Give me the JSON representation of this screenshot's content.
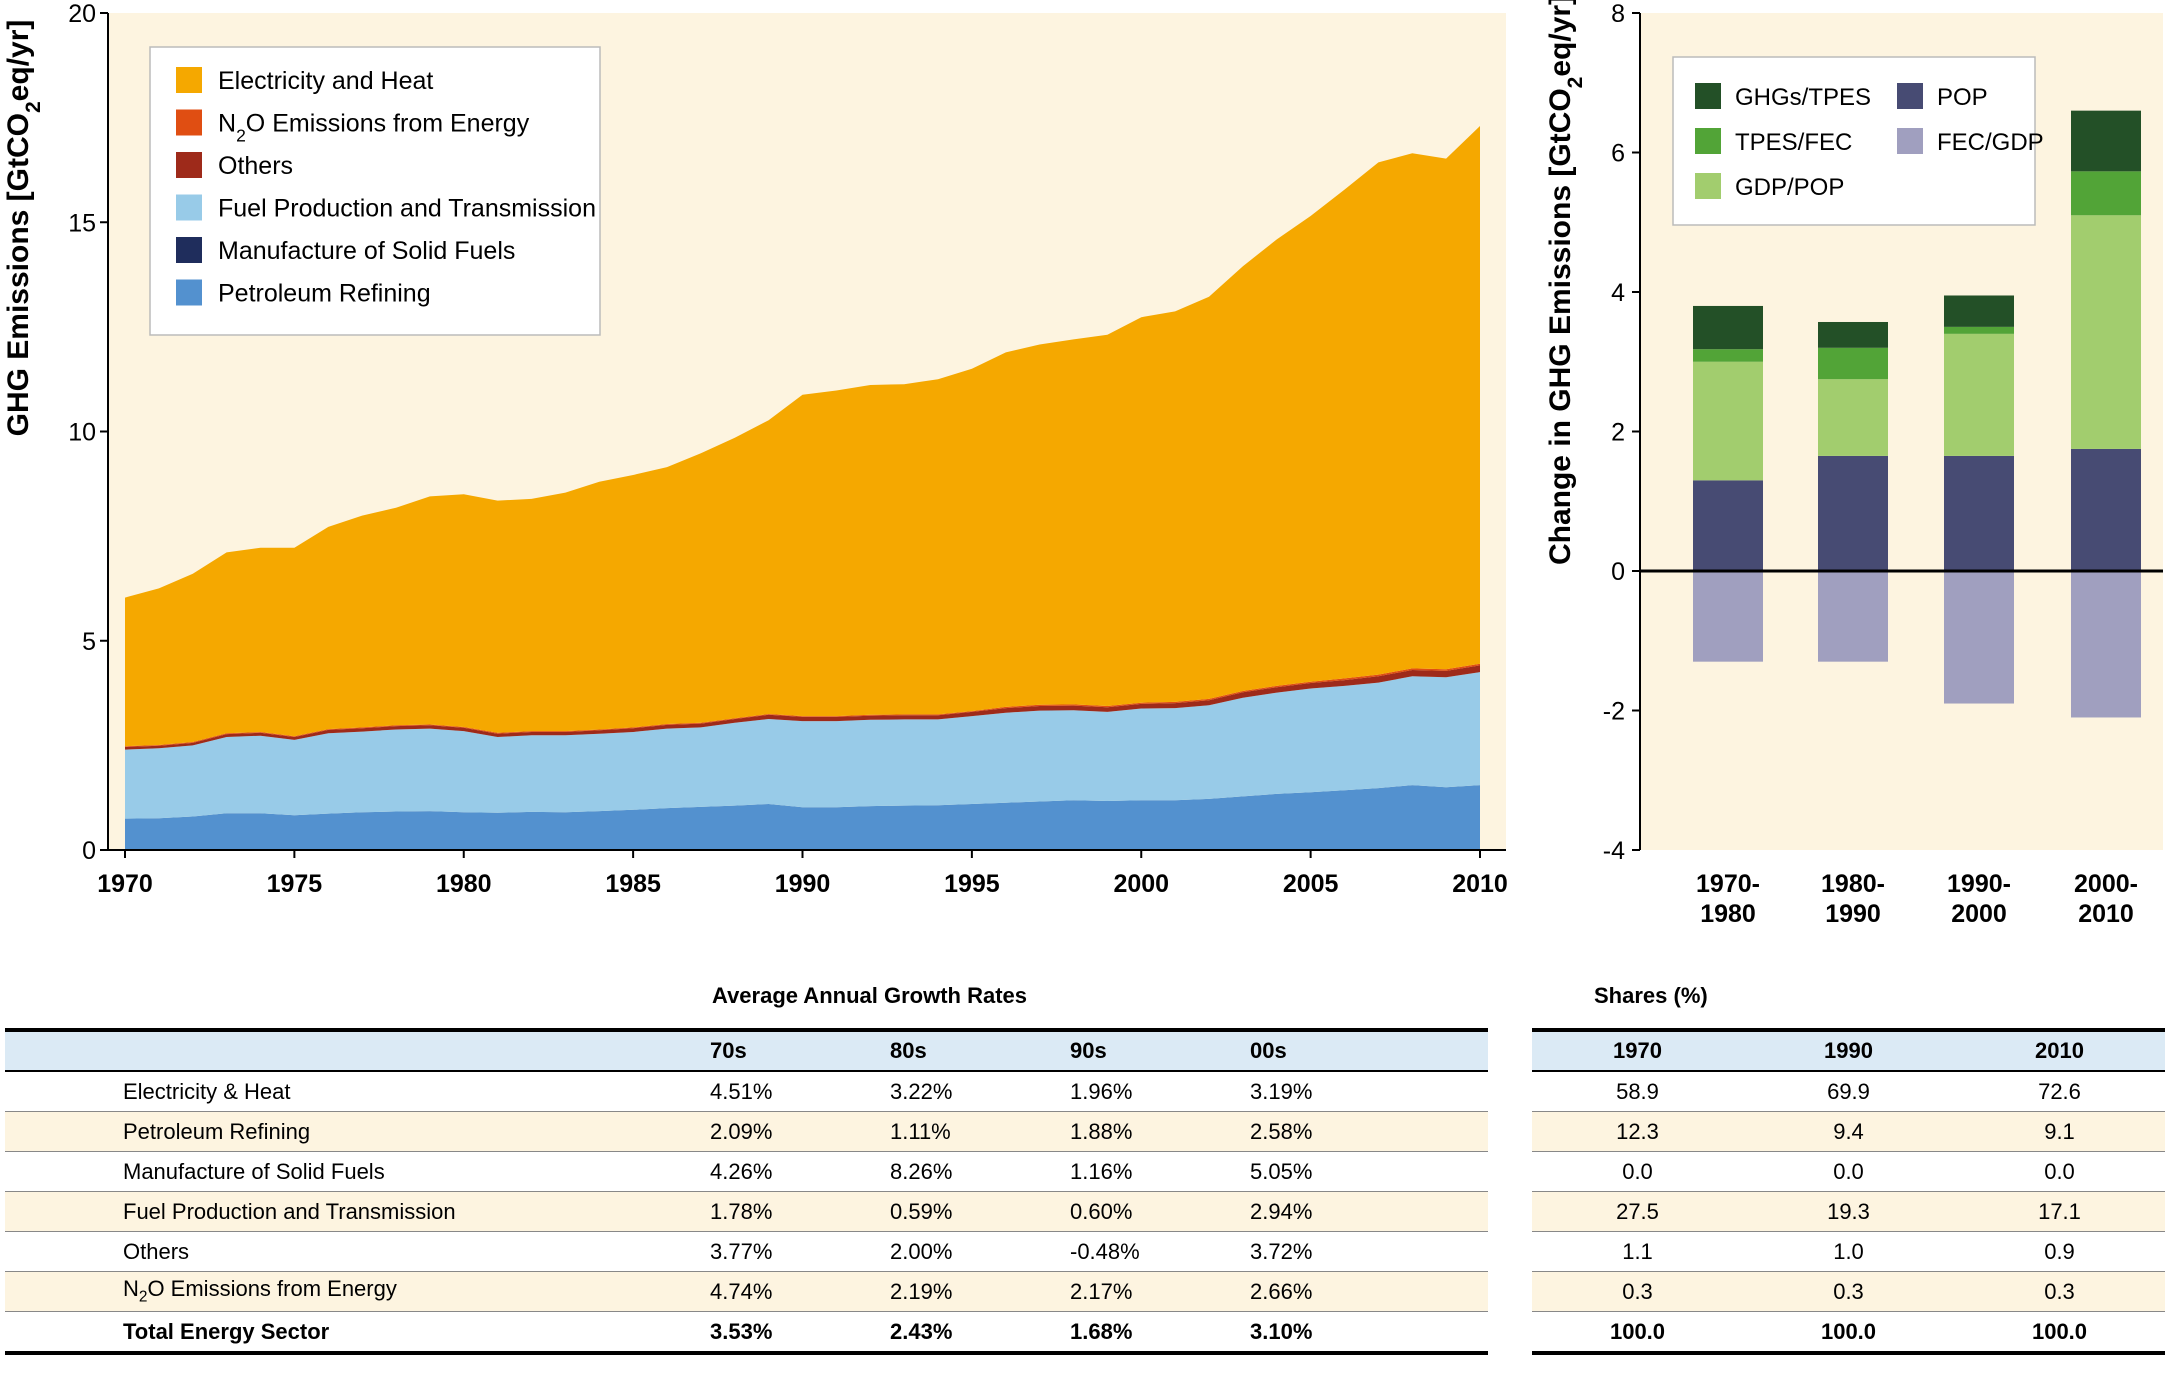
{
  "chart_data": [
    {
      "type": "area",
      "ylabel": "GHG Emissions [GtCO₂eq/yr]",
      "ylim": [
        0,
        20
      ],
      "y_ticks": [
        0,
        5,
        10,
        15,
        20
      ],
      "x_ticks": [
        1970,
        1975,
        1980,
        1985,
        1990,
        1995,
        2000,
        2005,
        2010
      ],
      "xlim": [
        1970,
        2010
      ],
      "background": "#fdf4e0",
      "legend_position": "top-left",
      "x": [
        1970,
        1971,
        1972,
        1973,
        1974,
        1975,
        1976,
        1977,
        1978,
        1979,
        1980,
        1981,
        1982,
        1983,
        1984,
        1985,
        1986,
        1987,
        1988,
        1989,
        1990,
        1991,
        1992,
        1993,
        1994,
        1995,
        1996,
        1997,
        1998,
        1999,
        2000,
        2001,
        2002,
        2003,
        2004,
        2005,
        2006,
        2007,
        2008,
        2009,
        2010
      ],
      "series": [
        {
          "name": "Petroleum Refining",
          "color": "#5391cf",
          "values": [
            0.75,
            0.76,
            0.8,
            0.88,
            0.88,
            0.83,
            0.87,
            0.9,
            0.92,
            0.93,
            0.9,
            0.89,
            0.91,
            0.9,
            0.93,
            0.96,
            1.0,
            1.03,
            1.06,
            1.1,
            1.02,
            1.02,
            1.05,
            1.06,
            1.07,
            1.1,
            1.13,
            1.16,
            1.19,
            1.17,
            1.19,
            1.19,
            1.22,
            1.28,
            1.34,
            1.38,
            1.43,
            1.48,
            1.55,
            1.5,
            1.55
          ]
        },
        {
          "name": "Manufacture of Solid Fuels",
          "color": "#1f2d5c",
          "values": [
            0,
            0,
            0,
            0,
            0,
            0,
            0,
            0,
            0,
            0,
            0,
            0,
            0,
            0,
            0,
            0,
            0,
            0,
            0,
            0,
            0,
            0,
            0,
            0,
            0,
            0,
            0,
            0,
            0,
            0,
            0,
            0,
            0,
            0,
            0,
            0,
            0,
            0,
            0,
            0,
            0
          ]
        },
        {
          "name": "Fuel Production and Transmission",
          "color": "#98cbe8",
          "values": [
            1.65,
            1.67,
            1.7,
            1.82,
            1.85,
            1.8,
            1.92,
            1.93,
            1.96,
            1.97,
            1.94,
            1.81,
            1.83,
            1.84,
            1.85,
            1.86,
            1.9,
            1.9,
            1.98,
            2.03,
            2.06,
            2.06,
            2.06,
            2.06,
            2.05,
            2.1,
            2.15,
            2.17,
            2.15,
            2.13,
            2.19,
            2.2,
            2.24,
            2.36,
            2.42,
            2.48,
            2.49,
            2.52,
            2.6,
            2.63,
            2.7
          ]
        },
        {
          "name": "Others",
          "color": "#9e2a1a",
          "values": [
            0.06,
            0.06,
            0.06,
            0.07,
            0.07,
            0.07,
            0.08,
            0.08,
            0.08,
            0.08,
            0.08,
            0.08,
            0.08,
            0.08,
            0.08,
            0.09,
            0.09,
            0.09,
            0.09,
            0.1,
            0.1,
            0.1,
            0.1,
            0.1,
            0.1,
            0.1,
            0.11,
            0.11,
            0.11,
            0.11,
            0.11,
            0.12,
            0.12,
            0.13,
            0.13,
            0.13,
            0.14,
            0.15,
            0.15,
            0.15,
            0.16
          ]
        },
        {
          "name": "N₂O Emissions from Energy",
          "color": "#e04e12",
          "values": [
            0.02,
            0.02,
            0.02,
            0.02,
            0.02,
            0.02,
            0.02,
            0.02,
            0.02,
            0.02,
            0.02,
            0.02,
            0.02,
            0.02,
            0.02,
            0.02,
            0.02,
            0.02,
            0.02,
            0.02,
            0.02,
            0.02,
            0.02,
            0.02,
            0.02,
            0.02,
            0.03,
            0.03,
            0.03,
            0.03,
            0.03,
            0.03,
            0.03,
            0.03,
            0.03,
            0.03,
            0.04,
            0.04,
            0.04,
            0.04,
            0.04
          ]
        },
        {
          "name": "Electricity and Heat",
          "color": "#f5a800",
          "values": [
            3.55,
            3.74,
            4.02,
            4.32,
            4.4,
            4.5,
            4.83,
            5.06,
            5.2,
            5.45,
            5.56,
            5.55,
            5.55,
            5.7,
            5.92,
            6.03,
            6.14,
            6.44,
            6.7,
            7.02,
            7.68,
            7.78,
            7.88,
            7.89,
            8.01,
            8.18,
            8.47,
            8.61,
            8.72,
            8.87,
            9.21,
            9.33,
            9.61,
            10.15,
            10.67,
            11.13,
            11.68,
            12.24,
            12.31,
            12.2,
            12.85
          ]
        }
      ]
    },
    {
      "type": "bar",
      "stacked": true,
      "ylabel": "Change in GHG Emissions [GtCO₂eq/yr]",
      "ylim": [
        -4,
        8
      ],
      "y_ticks": [
        -4,
        -2,
        0,
        2,
        4,
        6,
        8
      ],
      "y_tick_labels": [
        "-4",
        "-2",
        "0",
        "2",
        "4",
        "6",
        "8"
      ],
      "background": "#fdf4e0",
      "legend_position": "top",
      "categories": [
        [
          "1970-",
          "1980"
        ],
        [
          "1980-",
          "1990"
        ],
        [
          "1990-",
          "2000"
        ],
        [
          "2000-",
          "2010"
        ]
      ],
      "series": [
        {
          "name": "POP",
          "color": "#474b73",
          "values": [
            1.3,
            1.65,
            1.65,
            1.75
          ]
        },
        {
          "name": "GDP/POP",
          "color": "#a2cd6e",
          "values": [
            1.7,
            1.1,
            1.75,
            3.35
          ]
        },
        {
          "name": "TPES/FEC",
          "color": "#52a437",
          "values": [
            0.18,
            0.45,
            0.1,
            0.63
          ]
        },
        {
          "name": "GHGs/TPES",
          "color": "#235027",
          "values": [
            0.62,
            0.37,
            0.45,
            0.87
          ]
        },
        {
          "name": "FEC/GDP",
          "color": "#a09fbf",
          "values": [
            -1.3,
            -1.3,
            -1.9,
            -2.1
          ]
        }
      ],
      "legend_order": [
        "GHGs/TPES",
        "POP",
        "TPES/FEC",
        "FEC/GDP",
        "GDP/POP"
      ]
    }
  ],
  "growth_table": {
    "title": "Average Annual Growth Rates",
    "headers": [
      "",
      "70s",
      "80s",
      "90s",
      "00s"
    ],
    "rows": [
      {
        "label": "Electricity & Heat",
        "values": [
          "4.51%",
          "3.22%",
          "1.96%",
          "3.19%"
        ]
      },
      {
        "label": "Petroleum Refining",
        "values": [
          "2.09%",
          "1.11%",
          "1.88%",
          "2.58%"
        ]
      },
      {
        "label": "Manufacture of Solid Fuels",
        "values": [
          "4.26%",
          "8.26%",
          "1.16%",
          "5.05%"
        ]
      },
      {
        "label": "Fuel Production and Transmission",
        "values": [
          "1.78%",
          "0.59%",
          "0.60%",
          "2.94%"
        ]
      },
      {
        "label": "Others",
        "values": [
          "3.77%",
          "2.00%",
          "-0.48%",
          "3.72%"
        ]
      },
      {
        "label": "N₂O Emissions from Energy",
        "values": [
          "4.74%",
          "2.19%",
          "2.17%",
          "2.66%"
        ]
      },
      {
        "label": "Total Energy Sector",
        "values": [
          "3.53%",
          "2.43%",
          "1.68%",
          "3.10%"
        ]
      }
    ]
  },
  "shares_table": {
    "title": "Shares (%)",
    "headers": [
      "1970",
      "1990",
      "2010"
    ],
    "rows": [
      [
        "58.9",
        "69.9",
        "72.6"
      ],
      [
        "12.3",
        "9.4",
        "9.1"
      ],
      [
        "0.0",
        "0.0",
        "0.0"
      ],
      [
        "27.5",
        "19.3",
        "17.1"
      ],
      [
        "1.1",
        "1.0",
        "0.9"
      ],
      [
        "0.3",
        "0.3",
        "0.3"
      ],
      [
        "100.0",
        "100.0",
        "100.0"
      ]
    ]
  }
}
